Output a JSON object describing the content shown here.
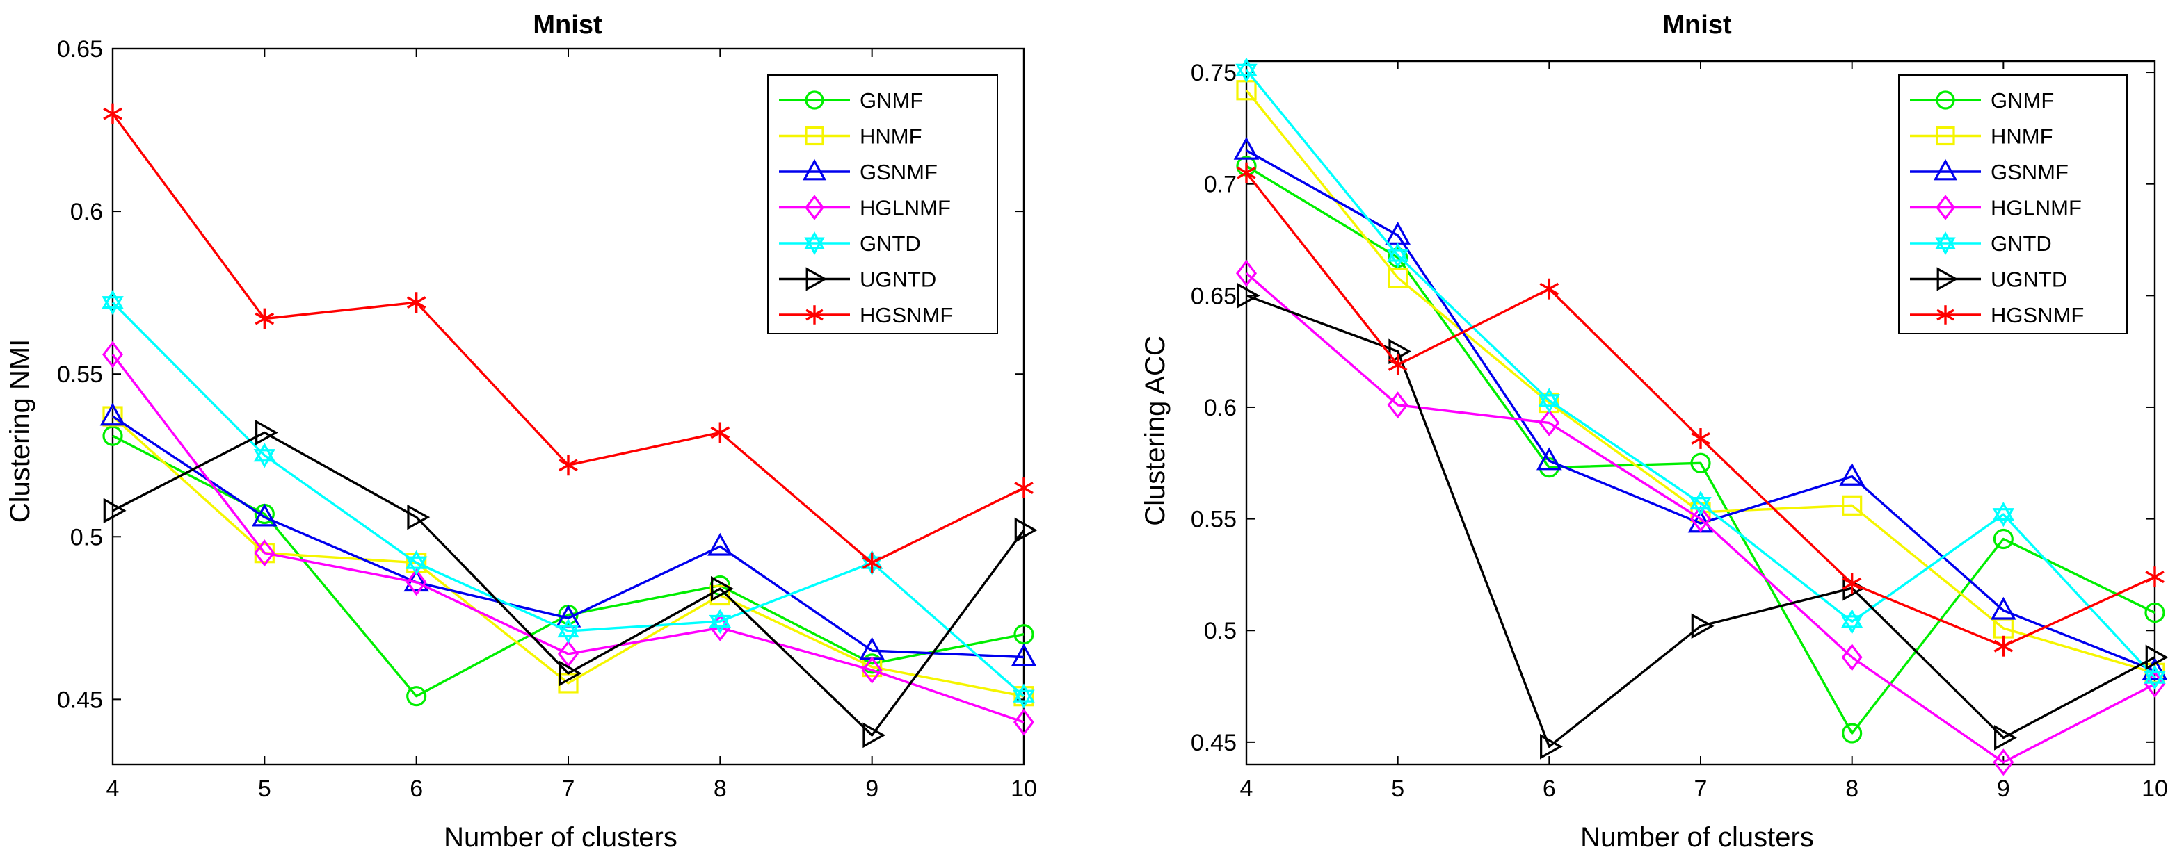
{
  "legend_location": "top-right",
  "chart_data": [
    {
      "type": "line",
      "title": "Mnist",
      "xlabel": "Number of clusters",
      "ylabel": "Clustering NMI",
      "x": [
        4,
        5,
        6,
        7,
        8,
        9,
        10
      ],
      "xlim": [
        4,
        10
      ],
      "ylim": [
        0.43,
        0.65
      ],
      "yticks": [
        0.45,
        0.5,
        0.55,
        0.6,
        0.65
      ],
      "xticks": [
        4,
        5,
        6,
        7,
        8,
        9,
        10
      ],
      "series": [
        {
          "name": "GNMF",
          "values": [
            0.531,
            0.507,
            0.451,
            0.476,
            0.485,
            0.461,
            0.47
          ]
        },
        {
          "name": " HNMF",
          "values": [
            0.537,
            0.495,
            0.492,
            0.455,
            0.482,
            0.46,
            0.451
          ]
        },
        {
          "name": "GSNMF",
          "values": [
            0.537,
            0.506,
            0.486,
            0.475,
            0.497,
            0.465,
            0.463
          ]
        },
        {
          "name": "HGLNMF",
          "values": [
            0.556,
            0.495,
            0.486,
            0.464,
            0.472,
            0.459,
            0.443
          ]
        },
        {
          "name": "GNTD",
          "values": [
            0.572,
            0.525,
            0.492,
            0.471,
            0.474,
            0.492,
            0.451
          ]
        },
        {
          "name": "UGNTD",
          "values": [
            0.508,
            0.532,
            0.506,
            0.458,
            0.484,
            0.439,
            0.502
          ]
        },
        {
          "name": "HGSNMF",
          "values": [
            0.63,
            0.567,
            0.572,
            0.522,
            0.532,
            0.492,
            0.515
          ]
        }
      ]
    },
    {
      "type": "line",
      "title": "Mnist",
      "xlabel": "Number of clusters",
      "ylabel": "Clustering ACC",
      "x": [
        4,
        5,
        6,
        7,
        8,
        9,
        10
      ],
      "xlim": [
        4,
        10
      ],
      "ylim": [
        0.44,
        0.755
      ],
      "yticks": [
        0.45,
        0.5,
        0.55,
        0.6,
        0.65,
        0.7,
        0.75
      ],
      "xticks": [
        4,
        5,
        6,
        7,
        8,
        9,
        10
      ],
      "series": [
        {
          "name": "GNMF",
          "values": [
            0.708,
            0.667,
            0.573,
            0.575,
            0.454,
            0.541,
            0.508
          ]
        },
        {
          "name": " HNMF",
          "values": [
            0.742,
            0.658,
            0.602,
            0.553,
            0.556,
            0.501,
            0.481
          ]
        },
        {
          "name": "GSNMF",
          "values": [
            0.715,
            0.677,
            0.576,
            0.548,
            0.569,
            0.509,
            0.482
          ]
        },
        {
          "name": "HGLNMF",
          "values": [
            0.66,
            0.601,
            0.593,
            0.55,
            0.488,
            0.441,
            0.476
          ]
        },
        {
          "name": "GNTD",
          "values": [
            0.751,
            0.668,
            0.603,
            0.557,
            0.504,
            0.552,
            0.479
          ]
        },
        {
          "name": "UGNTD",
          "values": [
            0.65,
            0.625,
            0.448,
            0.502,
            0.519,
            0.452,
            0.488
          ]
        },
        {
          "name": "HGSNMF",
          "values": [
            0.705,
            0.619,
            0.653,
            0.586,
            0.521,
            0.493,
            0.524
          ]
        }
      ]
    }
  ],
  "styles": [
    {
      "color": "#00ee00",
      "marker": "circle"
    },
    {
      "color": "#f5f500",
      "marker": "square"
    },
    {
      "color": "#0000ee",
      "marker": "triangle"
    },
    {
      "color": "#ff00ff",
      "marker": "diamond"
    },
    {
      "color": "#00ffff",
      "marker": "hexagram"
    },
    {
      "color": "#000000",
      "marker": "triangle-right"
    },
    {
      "color": "#ff0000",
      "marker": "asterisk"
    }
  ]
}
